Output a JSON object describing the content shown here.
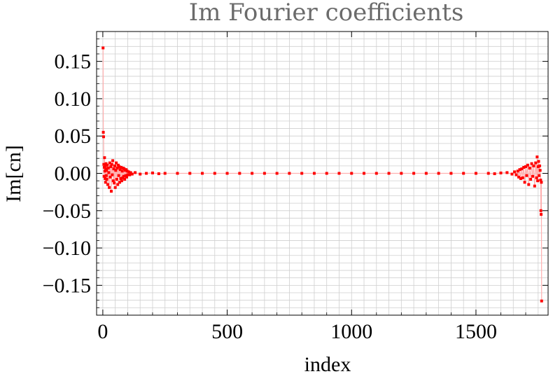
{
  "chart_data": {
    "type": "scatter",
    "title": "Im Fourier coefficients",
    "xlabel": "index",
    "ylabel": "Im[cn]",
    "xlim": [
      -25,
      1790
    ],
    "ylim": [
      -0.19,
      0.19
    ],
    "grid": true,
    "x_ticks": [
      0,
      500,
      1000,
      1500
    ],
    "x_tick_labels": [
      "0",
      "500",
      "1000",
      "1500"
    ],
    "y_ticks": [
      0.15,
      0.1,
      0.05,
      0.0,
      -0.05,
      -0.1,
      -0.15
    ],
    "y_tick_labels": [
      "0.15",
      "0.10",
      "0.05",
      "0.00",
      "−0.05",
      "−0.10",
      "−0.15"
    ],
    "series": [
      {
        "color": "#ff0000",
        "line_color": "#ffb0b0",
        "points": [
          [
            1,
            0.168
          ],
          [
            2,
            0.055
          ],
          [
            3,
            0.049
          ],
          [
            4,
            0.012
          ],
          [
            5,
            -0.004
          ],
          [
            6,
            0.008
          ],
          [
            7,
            0.021
          ],
          [
            8,
            0.003
          ],
          [
            9,
            -0.007
          ],
          [
            10,
            0.01
          ],
          [
            11,
            -0.012
          ],
          [
            12,
            0.006
          ],
          [
            13,
            0.013
          ],
          [
            14,
            -0.003
          ],
          [
            15,
            0.004
          ],
          [
            16,
            -0.008
          ],
          [
            18,
            0.011
          ],
          [
            20,
            -0.015
          ],
          [
            22,
            0.007
          ],
          [
            24,
            0.001
          ],
          [
            26,
            -0.019
          ],
          [
            28,
            0.014
          ],
          [
            30,
            -0.005
          ],
          [
            32,
            0.009
          ],
          [
            34,
            -0.024
          ],
          [
            36,
            0.012
          ],
          [
            38,
            -0.002
          ],
          [
            40,
            0.017
          ],
          [
            42,
            -0.01
          ],
          [
            44,
            0.006
          ],
          [
            46,
            -0.013
          ],
          [
            48,
            0.01
          ],
          [
            50,
            -0.019
          ],
          [
            52,
            0.004
          ],
          [
            54,
            0.014
          ],
          [
            56,
            -0.008
          ],
          [
            58,
            0.007
          ],
          [
            60,
            -0.015
          ],
          [
            62,
            0.011
          ],
          [
            64,
            -0.003
          ],
          [
            66,
            0.009
          ],
          [
            68,
            -0.012
          ],
          [
            70,
            0.005
          ],
          [
            72,
            -0.007
          ],
          [
            74,
            0.008
          ],
          [
            76,
            -0.01
          ],
          [
            78,
            0.003
          ],
          [
            80,
            -0.006
          ],
          [
            82,
            0.007
          ],
          [
            84,
            -0.004
          ],
          [
            86,
            0.006
          ],
          [
            88,
            -0.008
          ],
          [
            90,
            0.004
          ],
          [
            92,
            -0.003
          ],
          [
            94,
            0.005
          ],
          [
            96,
            -0.005
          ],
          [
            98,
            0.003
          ],
          [
            100,
            -0.002
          ],
          [
            104,
            0.002
          ],
          [
            108,
            -0.002
          ],
          [
            112,
            0.001
          ],
          [
            118,
            -0.001
          ],
          [
            130,
            0.001
          ],
          [
            150,
            -0.001
          ],
          [
            175,
            0.0
          ],
          [
            200,
            0.0005
          ],
          [
            225,
            -0.0005
          ],
          [
            250,
            0.0
          ],
          [
            300,
            0.0
          ],
          [
            350,
            0.0
          ],
          [
            400,
            0.0
          ],
          [
            450,
            0.0
          ],
          [
            500,
            0.0
          ],
          [
            550,
            0.0
          ],
          [
            600,
            0.0
          ],
          [
            650,
            0.0
          ],
          [
            700,
            0.0
          ],
          [
            750,
            0.0
          ],
          [
            800,
            0.0
          ],
          [
            850,
            0.0
          ],
          [
            900,
            0.0
          ],
          [
            950,
            0.0
          ],
          [
            1000,
            0.0
          ],
          [
            1050,
            0.0
          ],
          [
            1100,
            0.0
          ],
          [
            1150,
            0.0
          ],
          [
            1200,
            0.0
          ],
          [
            1250,
            0.0
          ],
          [
            1300,
            0.0
          ],
          [
            1350,
            0.0
          ],
          [
            1400,
            0.0
          ],
          [
            1450,
            0.0
          ],
          [
            1500,
            0.0
          ],
          [
            1550,
            0.0
          ],
          [
            1575,
            -0.0005
          ],
          [
            1600,
            0.0005
          ],
          [
            1625,
            0.001
          ],
          [
            1645,
            -0.001
          ],
          [
            1655,
            0.002
          ],
          [
            1662,
            -0.002
          ],
          [
            1668,
            0.003
          ],
          [
            1672,
            -0.005
          ],
          [
            1676,
            0.005
          ],
          [
            1680,
            -0.007
          ],
          [
            1684,
            0.006
          ],
          [
            1688,
            -0.006
          ],
          [
            1692,
            0.008
          ],
          [
            1696,
            -0.012
          ],
          [
            1700,
            0.009
          ],
          [
            1704,
            -0.003
          ],
          [
            1708,
            0.011
          ],
          [
            1712,
            -0.015
          ],
          [
            1716,
            0.007
          ],
          [
            1720,
            -0.008
          ],
          [
            1724,
            0.013
          ],
          [
            1728,
            -0.004
          ],
          [
            1732,
            0.01
          ],
          [
            1736,
            -0.017
          ],
          [
            1740,
            0.014
          ],
          [
            1744,
            -0.006
          ],
          [
            1746,
            0.022
          ],
          [
            1748,
            -0.01
          ],
          [
            1750,
            0.009
          ],
          [
            1752,
            0.016
          ],
          [
            1754,
            -0.003
          ],
          [
            1756,
            0.01
          ],
          [
            1758,
            0.004
          ],
          [
            1760,
            -0.009
          ],
          [
            1761,
            -0.05
          ],
          [
            1762,
            -0.055
          ],
          [
            1763,
            -0.012
          ],
          [
            1764,
            -0.171
          ]
        ]
      }
    ]
  }
}
